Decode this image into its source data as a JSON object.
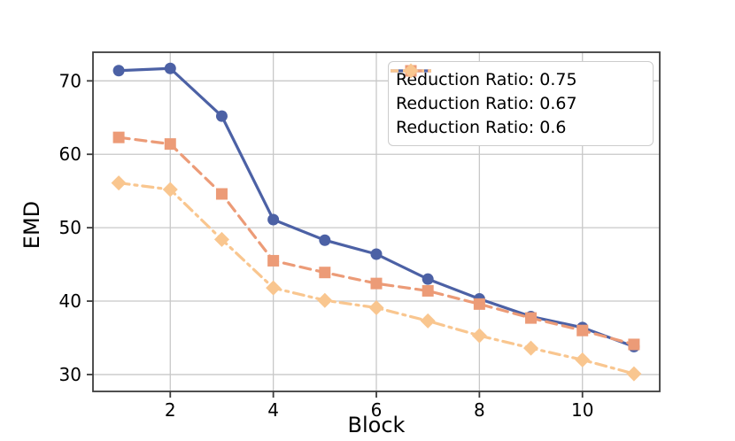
{
  "chart_data": {
    "type": "line",
    "title": "",
    "xlabel": "Block",
    "ylabel": "EMD",
    "x": [
      1,
      2,
      3,
      4,
      5,
      6,
      7,
      8,
      9,
      10,
      11
    ],
    "xticks": [
      2,
      4,
      6,
      8,
      10
    ],
    "yticks": [
      30,
      40,
      50,
      60,
      70
    ],
    "xlim": [
      0.5,
      11.5
    ],
    "ylim": [
      27.7,
      73.9
    ],
    "grid": true,
    "legend_position": "upper right",
    "series": [
      {
        "name": "Reduction Ratio: 0.75",
        "color": "#4c61a5",
        "marker": "circle",
        "linestyle": "solid",
        "values": [
          71.4,
          71.7,
          65.2,
          51.1,
          48.3,
          46.4,
          43.0,
          40.3,
          37.9,
          36.4,
          33.8
        ]
      },
      {
        "name": "Reduction Ratio: 0.67",
        "color": "#ec9b77",
        "marker": "square",
        "linestyle": "dashed",
        "values": [
          62.3,
          61.4,
          54.6,
          45.5,
          43.9,
          42.4,
          41.4,
          39.6,
          37.7,
          36.0,
          34.1
        ]
      },
      {
        "name": "Reduction Ratio: 0.6",
        "color": "#f9c68f",
        "marker": "diamond",
        "linestyle": "dashdot",
        "values": [
          56.1,
          55.2,
          48.4,
          41.8,
          40.1,
          39.1,
          37.3,
          35.3,
          33.6,
          32.0,
          30.1
        ]
      }
    ]
  },
  "style_colors": {
    "grid": "#c8c8c8",
    "spine": "#3c3c3c",
    "tick": "#3c3c3c",
    "legend_border": "#cccccc",
    "legend_background": "#ffffff"
  }
}
